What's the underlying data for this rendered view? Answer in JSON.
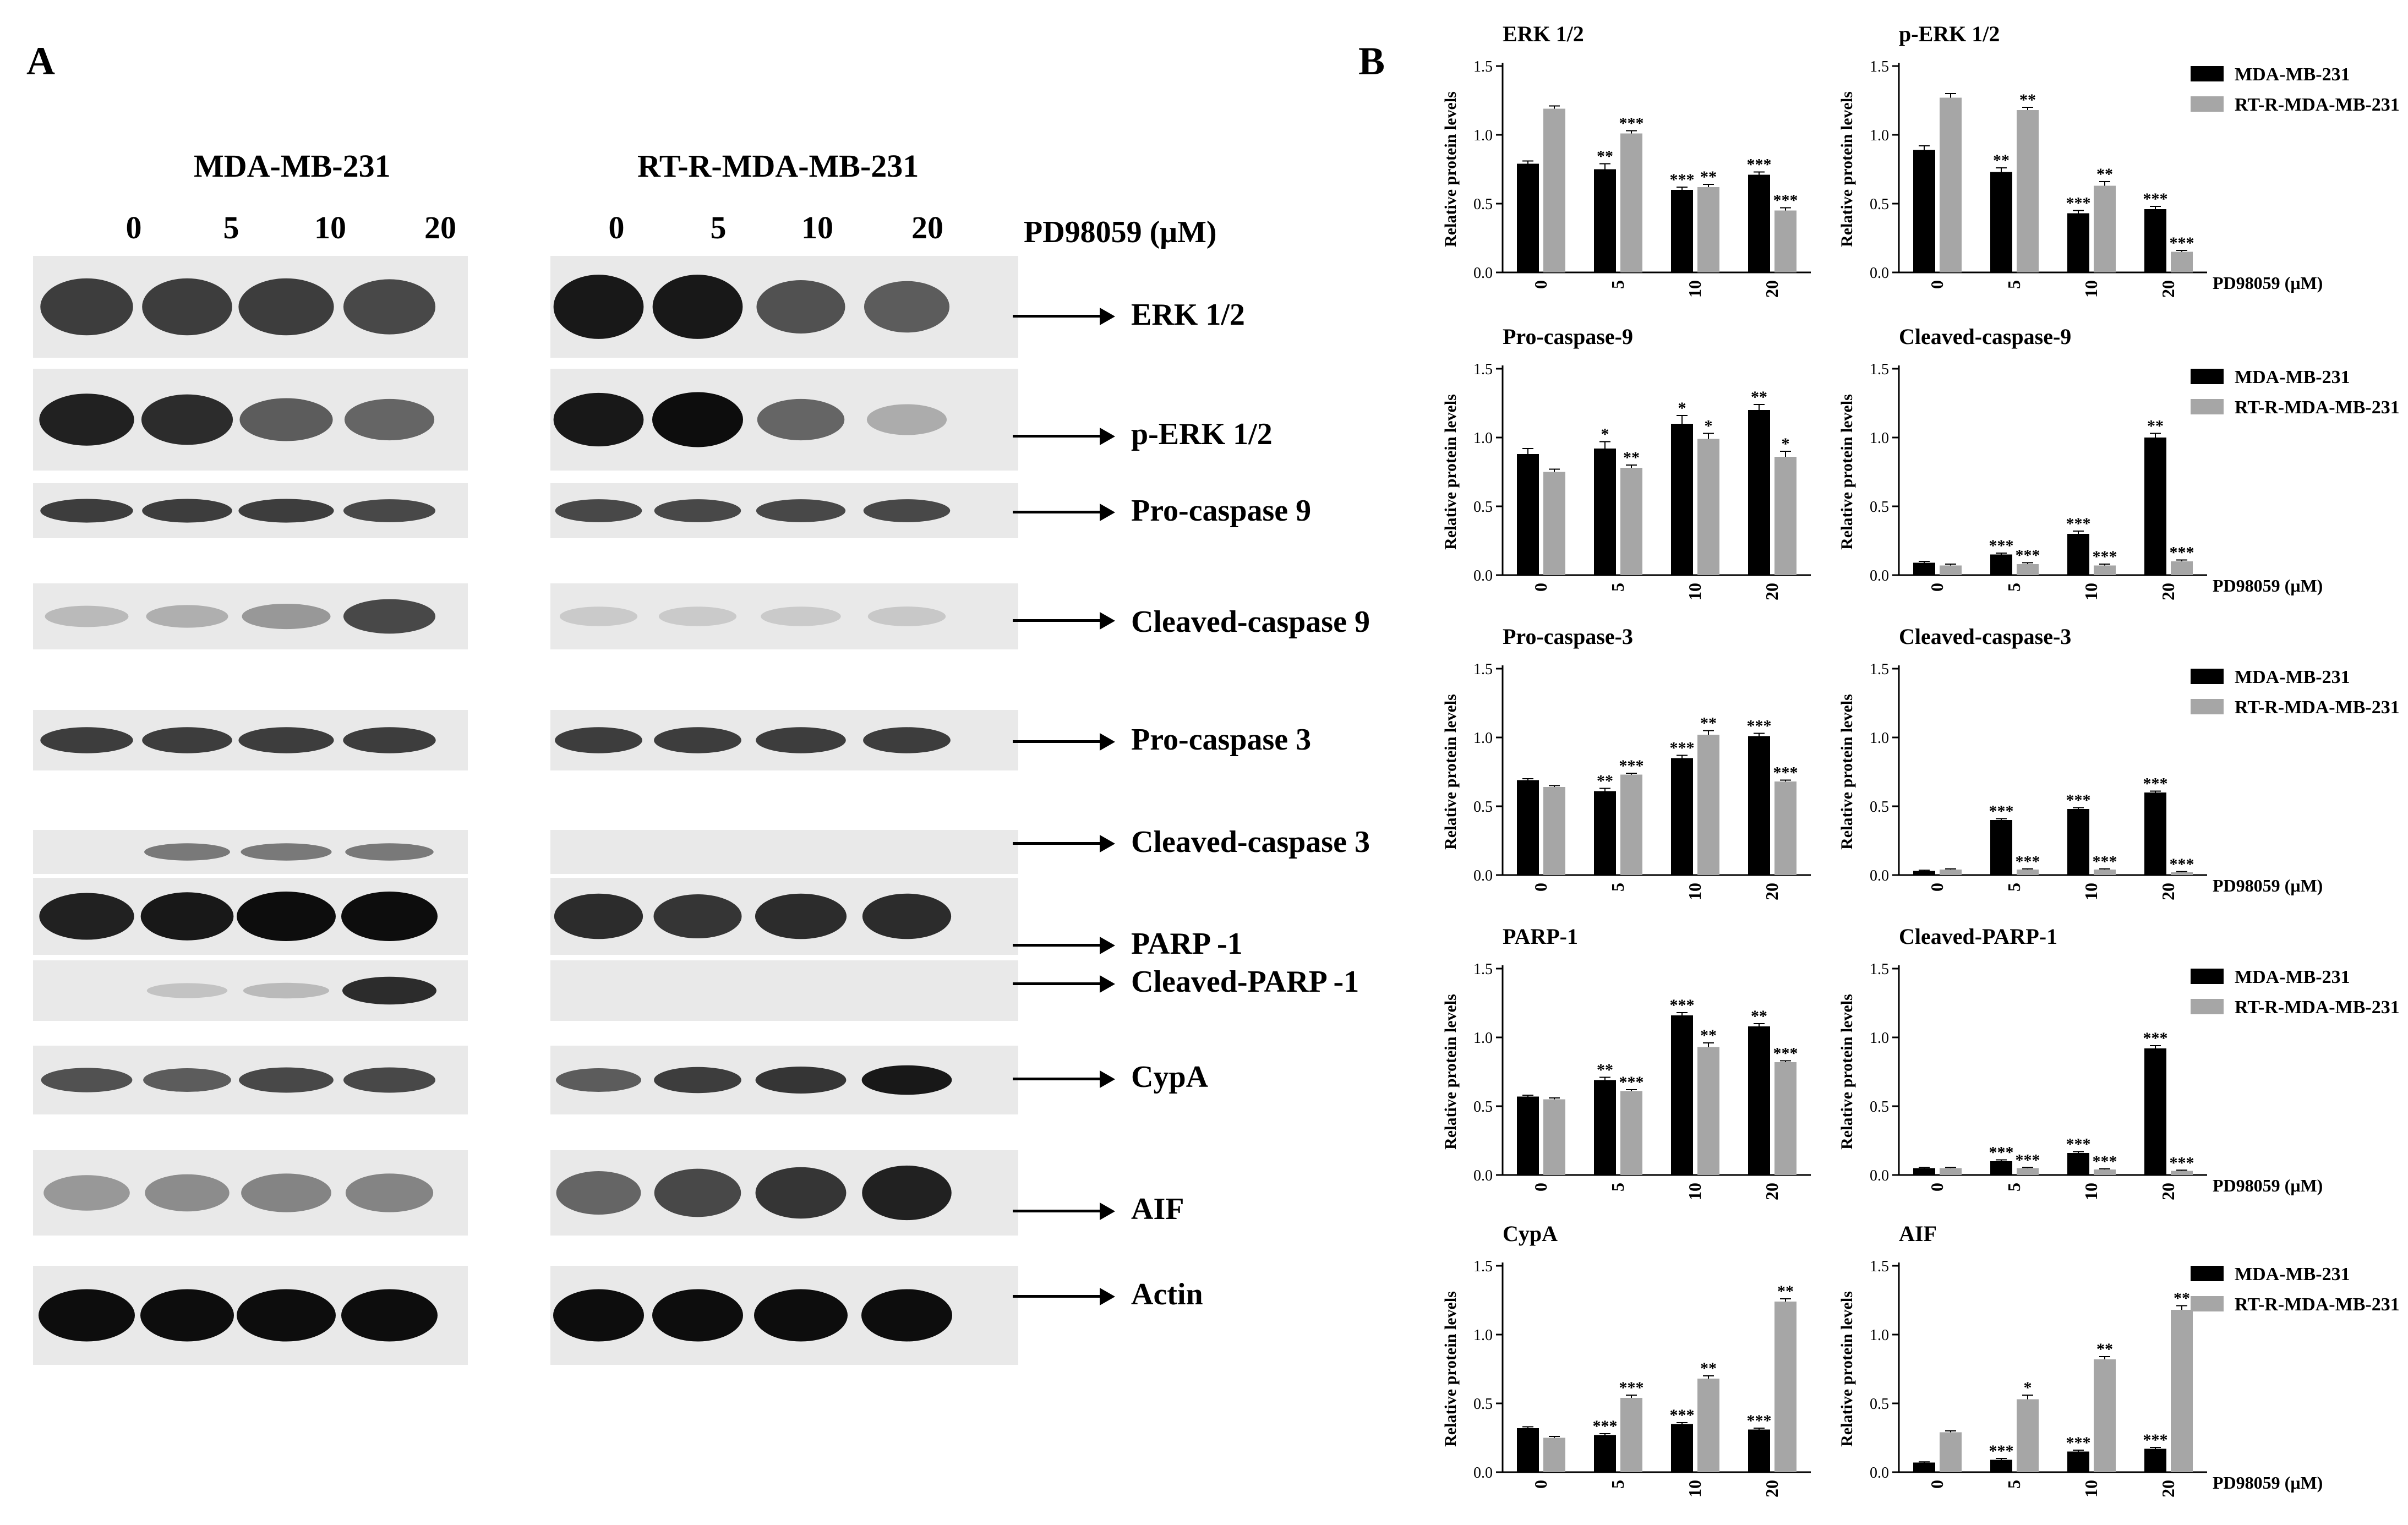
{
  "panel_a_label": "A",
  "panel_b_label": "B",
  "blot": {
    "cell_lines": [
      "MDA-MB-231",
      "RT-R-MDA-MB-231"
    ],
    "doses": [
      "0",
      "5",
      "10",
      "20"
    ],
    "agent_label": "PD98059 (μM)",
    "rows": [
      {
        "name": "ERK 1/2",
        "intensity": [
          0.75,
          0.75,
          0.75,
          0.7,
          0.95,
          0.95,
          0.65,
          0.6
        ]
      },
      {
        "name": "p-ERK 1/2",
        "intensity": [
          0.9,
          0.85,
          0.6,
          0.55,
          0.95,
          1.0,
          0.55,
          0.2
        ]
      },
      {
        "name": "Pro-caspase 9",
        "intensity": [
          0.75,
          0.75,
          0.75,
          0.7,
          0.7,
          0.7,
          0.7,
          0.7
        ]
      },
      {
        "name": "Cleaved-caspase 9",
        "intensity": [
          0.12,
          0.18,
          0.3,
          0.7,
          0.04,
          0.04,
          0.04,
          0.05
        ]
      },
      {
        "name": "Pro-caspase 3",
        "intensity": [
          0.75,
          0.75,
          0.75,
          0.75,
          0.75,
          0.75,
          0.75,
          0.75
        ]
      },
      {
        "name": "Cleaved-caspase 3",
        "intensity": [
          0.0,
          0.45,
          0.45,
          0.45,
          0.0,
          0.0,
          0.0,
          0.0
        ]
      },
      {
        "name": "PARP -1",
        "intensity": [
          0.9,
          0.95,
          1.0,
          1.0,
          0.85,
          0.8,
          0.85,
          0.85
        ]
      },
      {
        "name": "Cleaved-PARP -1",
        "intensity": [
          0.0,
          0.08,
          0.12,
          0.85,
          0.0,
          0.0,
          0.0,
          0.0
        ]
      },
      {
        "name": "CypA",
        "intensity": [
          0.65,
          0.6,
          0.7,
          0.7,
          0.6,
          0.75,
          0.8,
          0.95
        ]
      },
      {
        "name": "AIF",
        "intensity": [
          0.3,
          0.35,
          0.4,
          0.4,
          0.55,
          0.7,
          0.8,
          0.9
        ]
      },
      {
        "name": "Actin",
        "intensity": [
          1.0,
          1.0,
          1.0,
          1.0,
          1.0,
          1.0,
          1.0,
          1.0
        ]
      }
    ]
  },
  "chart_data": [
    {
      "type": "bar",
      "title": "ERK 1/2",
      "categories": [
        "0",
        "5",
        "10",
        "20"
      ],
      "ylabel": "Relative protein levels",
      "ylim": [
        0,
        1.5
      ],
      "yticks": [
        "0.0",
        "0.5",
        "1.0",
        "1.5"
      ],
      "legend": "none",
      "xlabel": "",
      "series": [
        {
          "name": "MDA-MB-231",
          "values": [
            0.79,
            0.75,
            0.6,
            0.71
          ],
          "errors": [
            0.02,
            0.04,
            0.02,
            0.02
          ],
          "sig": [
            "",
            "**",
            "***",
            "***"
          ]
        },
        {
          "name": "RT-R-MDA-MB-231",
          "values": [
            1.19,
            1.01,
            0.62,
            0.45
          ],
          "errors": [
            0.02,
            0.02,
            0.02,
            0.02
          ],
          "sig": [
            "",
            "***",
            "**",
            "***"
          ]
        }
      ]
    },
    {
      "type": "bar",
      "title": "p-ERK 1/2",
      "categories": [
        "0",
        "5",
        "10",
        "20"
      ],
      "ylabel": "Relative protein levels",
      "ylim": [
        0,
        1.5
      ],
      "yticks": [
        "0.0",
        "0.5",
        "1.0",
        "1.5"
      ],
      "legend": "top-right",
      "xlabel": "PD98059 (μM)",
      "series": [
        {
          "name": "MDA-MB-231",
          "values": [
            0.89,
            0.73,
            0.43,
            0.46
          ],
          "errors": [
            0.03,
            0.03,
            0.02,
            0.02
          ],
          "sig": [
            "",
            "**",
            "***",
            "***"
          ]
        },
        {
          "name": "RT-R-MDA-MB-231",
          "values": [
            1.27,
            1.18,
            0.63,
            0.15
          ],
          "errors": [
            0.03,
            0.02,
            0.03,
            0.01
          ],
          "sig": [
            "",
            "**",
            "**",
            "***"
          ]
        }
      ]
    },
    {
      "type": "bar",
      "title": "Pro-caspase-9",
      "categories": [
        "0",
        "5",
        "10",
        "20"
      ],
      "ylabel": "Relative protein levels",
      "ylim": [
        0,
        1.5
      ],
      "yticks": [
        "0.0",
        "0.5",
        "1.0",
        "1.5"
      ],
      "legend": "none",
      "xlabel": "",
      "series": [
        {
          "name": "MDA-MB-231",
          "values": [
            0.88,
            0.92,
            1.1,
            1.2
          ],
          "errors": [
            0.04,
            0.05,
            0.06,
            0.04
          ],
          "sig": [
            "",
            "*",
            "*",
            "**"
          ]
        },
        {
          "name": "RT-R-MDA-MB-231",
          "values": [
            0.75,
            0.78,
            0.99,
            0.86
          ],
          "errors": [
            0.02,
            0.02,
            0.04,
            0.04
          ],
          "sig": [
            "",
            "**",
            "*",
            "*"
          ]
        }
      ]
    },
    {
      "type": "bar",
      "title": "Cleaved-caspase-9",
      "categories": [
        "0",
        "5",
        "10",
        "20"
      ],
      "ylabel": "Relative protein levels",
      "ylim": [
        0,
        1.5
      ],
      "yticks": [
        "0.0",
        "0.5",
        "1.0",
        "1.5"
      ],
      "legend": "top-right",
      "xlabel": "PD98059 (μM)",
      "series": [
        {
          "name": "MDA-MB-231",
          "values": [
            0.09,
            0.15,
            0.3,
            1.0
          ],
          "errors": [
            0.01,
            0.01,
            0.02,
            0.03
          ],
          "sig": [
            "",
            "***",
            "***",
            "**"
          ]
        },
        {
          "name": "RT-R-MDA-MB-231",
          "values": [
            0.07,
            0.08,
            0.07,
            0.1
          ],
          "errors": [
            0.01,
            0.01,
            0.01,
            0.01
          ],
          "sig": [
            "",
            "***",
            "***",
            "***"
          ]
        }
      ]
    },
    {
      "type": "bar",
      "title": "Pro-caspase-3",
      "categories": [
        "0",
        "5",
        "10",
        "20"
      ],
      "ylabel": "Relative protein levels",
      "ylim": [
        0,
        1.5
      ],
      "yticks": [
        "0.0",
        "0.5",
        "1.0",
        "1.5"
      ],
      "legend": "none",
      "xlabel": "",
      "series": [
        {
          "name": "MDA-MB-231",
          "values": [
            0.69,
            0.61,
            0.85,
            1.01
          ],
          "errors": [
            0.01,
            0.02,
            0.02,
            0.02
          ],
          "sig": [
            "",
            "**",
            "***",
            "***"
          ]
        },
        {
          "name": "RT-R-MDA-MB-231",
          "values": [
            0.64,
            0.73,
            1.02,
            0.68
          ],
          "errors": [
            0.01,
            0.01,
            0.03,
            0.01
          ],
          "sig": [
            "",
            "***",
            "**",
            "***"
          ]
        }
      ]
    },
    {
      "type": "bar",
      "title": "Cleaved-caspase-3",
      "categories": [
        "0",
        "5",
        "10",
        "20"
      ],
      "ylabel": "Relative protein levels",
      "ylim": [
        0,
        1.5
      ],
      "yticks": [
        "0.0",
        "0.5",
        "1.0",
        "1.5"
      ],
      "legend": "top-right",
      "xlabel": "PD98059 (μM)",
      "series": [
        {
          "name": "MDA-MB-231",
          "values": [
            0.03,
            0.4,
            0.48,
            0.6
          ],
          "errors": [
            0.005,
            0.01,
            0.01,
            0.01
          ],
          "sig": [
            "",
            "***",
            "***",
            "***"
          ]
        },
        {
          "name": "RT-R-MDA-MB-231",
          "values": [
            0.04,
            0.04,
            0.04,
            0.02
          ],
          "errors": [
            0.005,
            0.005,
            0.005,
            0.005
          ],
          "sig": [
            "",
            "***",
            "***",
            "***"
          ]
        }
      ]
    },
    {
      "type": "bar",
      "title": "PARP-1",
      "categories": [
        "0",
        "5",
        "10",
        "20"
      ],
      "ylabel": "Relative protein levels",
      "ylim": [
        0,
        1.5
      ],
      "yticks": [
        "0.0",
        "0.5",
        "1.0",
        "1.5"
      ],
      "legend": "none",
      "xlabel": "",
      "series": [
        {
          "name": "MDA-MB-231",
          "values": [
            0.57,
            0.69,
            1.16,
            1.08
          ],
          "errors": [
            0.01,
            0.02,
            0.02,
            0.02
          ],
          "sig": [
            "",
            "**",
            "***",
            "**"
          ]
        },
        {
          "name": "RT-R-MDA-MB-231",
          "values": [
            0.55,
            0.61,
            0.93,
            0.82
          ],
          "errors": [
            0.01,
            0.01,
            0.03,
            0.01
          ],
          "sig": [
            "",
            "***",
            "**",
            "***"
          ]
        }
      ]
    },
    {
      "type": "bar",
      "title": "Cleaved-PARP-1",
      "categories": [
        "0",
        "5",
        "10",
        "20"
      ],
      "ylabel": "Relative protein levels",
      "ylim": [
        0,
        1.5
      ],
      "yticks": [
        "0.0",
        "0.5",
        "1.0",
        "1.5"
      ],
      "legend": "top-right",
      "xlabel": "PD98059 (μM)",
      "series": [
        {
          "name": "MDA-MB-231",
          "values": [
            0.05,
            0.1,
            0.16,
            0.92
          ],
          "errors": [
            0.005,
            0.01,
            0.01,
            0.02
          ],
          "sig": [
            "",
            "***",
            "***",
            "***"
          ]
        },
        {
          "name": "RT-R-MDA-MB-231",
          "values": [
            0.05,
            0.05,
            0.04,
            0.03
          ],
          "errors": [
            0.005,
            0.005,
            0.005,
            0.005
          ],
          "sig": [
            "",
            "***",
            "***",
            "***"
          ]
        }
      ]
    },
    {
      "type": "bar",
      "title": "CypA",
      "categories": [
        "0",
        "5",
        "10",
        "20"
      ],
      "ylabel": "Relative protein levels",
      "ylim": [
        0,
        1.5
      ],
      "yticks": [
        "0.0",
        "0.5",
        "1.0",
        "1.5"
      ],
      "legend": "none",
      "xlabel": "",
      "series": [
        {
          "name": "MDA-MB-231",
          "values": [
            0.32,
            0.27,
            0.35,
            0.31
          ],
          "errors": [
            0.01,
            0.01,
            0.01,
            0.01
          ],
          "sig": [
            "",
            "***",
            "***",
            "***"
          ]
        },
        {
          "name": "RT-R-MDA-MB-231",
          "values": [
            0.25,
            0.54,
            0.68,
            1.24
          ],
          "errors": [
            0.01,
            0.02,
            0.02,
            0.02
          ],
          "sig": [
            "",
            "***",
            "**",
            "**"
          ]
        }
      ]
    },
    {
      "type": "bar",
      "title": "AIF",
      "categories": [
        "0",
        "5",
        "10",
        "20"
      ],
      "ylabel": "Relative protein levels",
      "ylim": [
        0,
        1.5
      ],
      "yticks": [
        "0.0",
        "0.5",
        "1.0",
        "1.5"
      ],
      "legend": "top-right",
      "xlabel": "PD98059 (μM)",
      "series": [
        {
          "name": "MDA-MB-231",
          "values": [
            0.07,
            0.09,
            0.15,
            0.17
          ],
          "errors": [
            0.005,
            0.01,
            0.01,
            0.01
          ],
          "sig": [
            "",
            "***",
            "***",
            "***"
          ]
        },
        {
          "name": "RT-R-MDA-MB-231",
          "values": [
            0.29,
            0.53,
            0.82,
            1.18
          ],
          "errors": [
            0.01,
            0.03,
            0.02,
            0.03
          ],
          "sig": [
            "",
            "*",
            "**",
            "**"
          ]
        }
      ]
    }
  ],
  "colors": {
    "series1": "#000000",
    "series2": "#a6a6a6",
    "band": "#0d0d0d",
    "membrane": "#e9e9e9"
  }
}
